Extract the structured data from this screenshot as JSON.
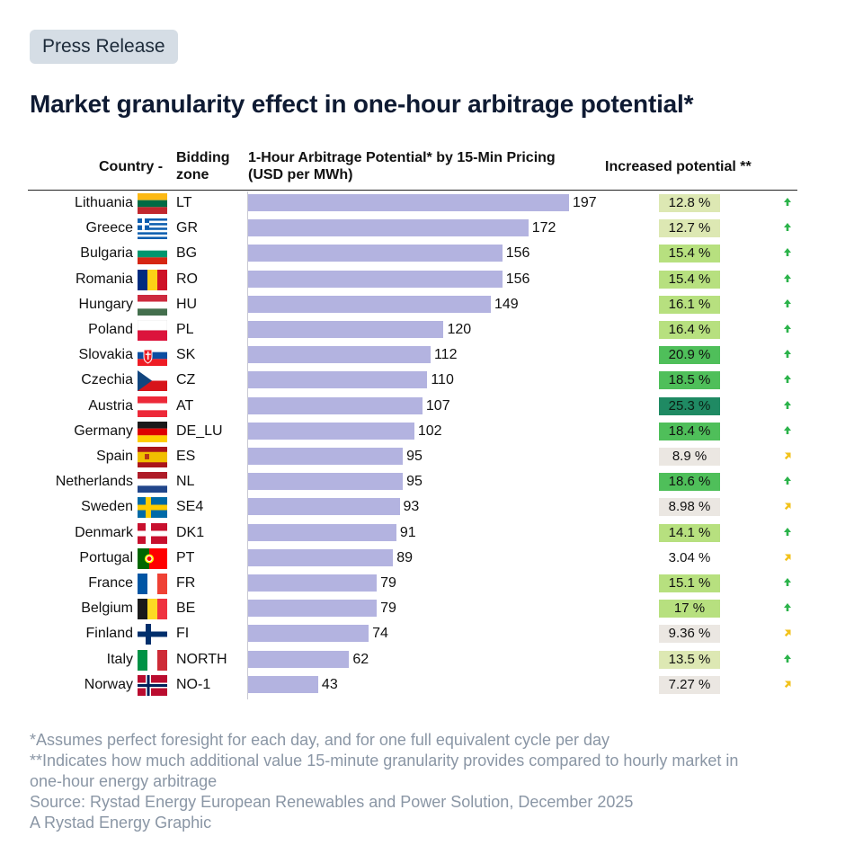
{
  "badge": "Press Release",
  "title": "Market granularity effect in one-hour arbitrage potential*",
  "headers": {
    "country": "Country -",
    "zone_1": "Bidding",
    "zone_2": "zone",
    "potential_1": "1-Hour Arbitrage Potential* by 15-Min Pricing",
    "potential_2": "(USD per MWh)",
    "increase": "Increased potential **"
  },
  "colors": {
    "bar": "#b3b3e0",
    "pct_very_high": "#1f8a63",
    "pct_high": "#4fbf5a",
    "pct_mid": "#b7e07f",
    "pct_low": "#dde8b3",
    "pct_neutral": "#ebe7e2",
    "arrow_up": "#2bb34a",
    "arrow_diag": "#f2c21b"
  },
  "chart_data": {
    "type": "bar",
    "orientation": "horizontal",
    "title": "Market granularity effect in one-hour arbitrage potential*",
    "xlabel": "1-Hour Arbitrage Potential* by 15-Min Pricing (USD per MWh)",
    "xlim": [
      0,
      197
    ],
    "grid": false,
    "rows": [
      {
        "country": "Lithuania",
        "flag": "lt",
        "zone": "LT",
        "value": 197,
        "increase": "12.8 %",
        "level": "low",
        "trend": "up"
      },
      {
        "country": "Greece",
        "flag": "gr",
        "zone": "GR",
        "value": 172,
        "increase": "12.7 %",
        "level": "low",
        "trend": "up"
      },
      {
        "country": "Bulgaria",
        "flag": "bg",
        "zone": "BG",
        "value": 156,
        "increase": "15.4 %",
        "level": "mid",
        "trend": "up"
      },
      {
        "country": "Romania",
        "flag": "ro",
        "zone": "RO",
        "value": 156,
        "increase": "15.4 %",
        "level": "mid",
        "trend": "up"
      },
      {
        "country": "Hungary",
        "flag": "hu",
        "zone": "HU",
        "value": 149,
        "increase": "16.1 %",
        "level": "mid",
        "trend": "up"
      },
      {
        "country": "Poland",
        "flag": "pl",
        "zone": "PL",
        "value": 120,
        "increase": "16.4 %",
        "level": "mid",
        "trend": "up"
      },
      {
        "country": "Slovakia",
        "flag": "sk",
        "zone": "SK",
        "value": 112,
        "increase": "20.9 %",
        "level": "high",
        "trend": "up"
      },
      {
        "country": "Czechia",
        "flag": "cz",
        "zone": "CZ",
        "value": 110,
        "increase": "18.5 %",
        "level": "high",
        "trend": "up"
      },
      {
        "country": "Austria",
        "flag": "at",
        "zone": "AT",
        "value": 107,
        "increase": "25.3 %",
        "level": "very_high",
        "trend": "up"
      },
      {
        "country": "Germany",
        "flag": "de",
        "zone": "DE_LU",
        "value": 102,
        "increase": "18.4 %",
        "level": "high",
        "trend": "up"
      },
      {
        "country": "Spain",
        "flag": "es",
        "zone": "ES",
        "value": 95,
        "increase": "8.9 %",
        "level": "neutral",
        "trend": "diag"
      },
      {
        "country": "Netherlands",
        "flag": "nl",
        "zone": "NL",
        "value": 95,
        "increase": "18.6 %",
        "level": "high",
        "trend": "up"
      },
      {
        "country": "Sweden",
        "flag": "se",
        "zone": "SE4",
        "value": 93,
        "increase": "8.98 %",
        "level": "neutral",
        "trend": "diag"
      },
      {
        "country": "Denmark",
        "flag": "dk",
        "zone": "DK1",
        "value": 91,
        "increase": "14.1 %",
        "level": "mid",
        "trend": "up"
      },
      {
        "country": "Portugal",
        "flag": "pt",
        "zone": "PT",
        "value": 89,
        "increase": "3.04 %",
        "level": "none",
        "trend": "diag"
      },
      {
        "country": "France",
        "flag": "fr",
        "zone": "FR",
        "value": 79,
        "increase": "15.1 %",
        "level": "mid",
        "trend": "up"
      },
      {
        "country": "Belgium",
        "flag": "be",
        "zone": "BE",
        "value": 79,
        "increase": "17 %",
        "level": "mid",
        "trend": "up"
      },
      {
        "country": "Finland",
        "flag": "fi",
        "zone": "FI",
        "value": 74,
        "increase": "9.36 %",
        "level": "neutral",
        "trend": "diag"
      },
      {
        "country": "Italy",
        "flag": "it",
        "zone": "NORTH",
        "value": 62,
        "increase": "13.5 %",
        "level": "low",
        "trend": "up"
      },
      {
        "country": "Norway",
        "flag": "no",
        "zone": "NO-1",
        "value": 43,
        "increase": "7.27 %",
        "level": "neutral",
        "trend": "diag"
      }
    ]
  },
  "footnotes": [
    "*Assumes perfect foresight for each day, and for one full equivalent cycle per day",
    "**Indicates how much additional value 15-minute granularity provides compared to hourly market in",
    "one-hour energy arbitrage",
    "Source: Rystad Energy European Renewables and Power Solution, December 2025",
    "A Rystad Energy Graphic"
  ]
}
